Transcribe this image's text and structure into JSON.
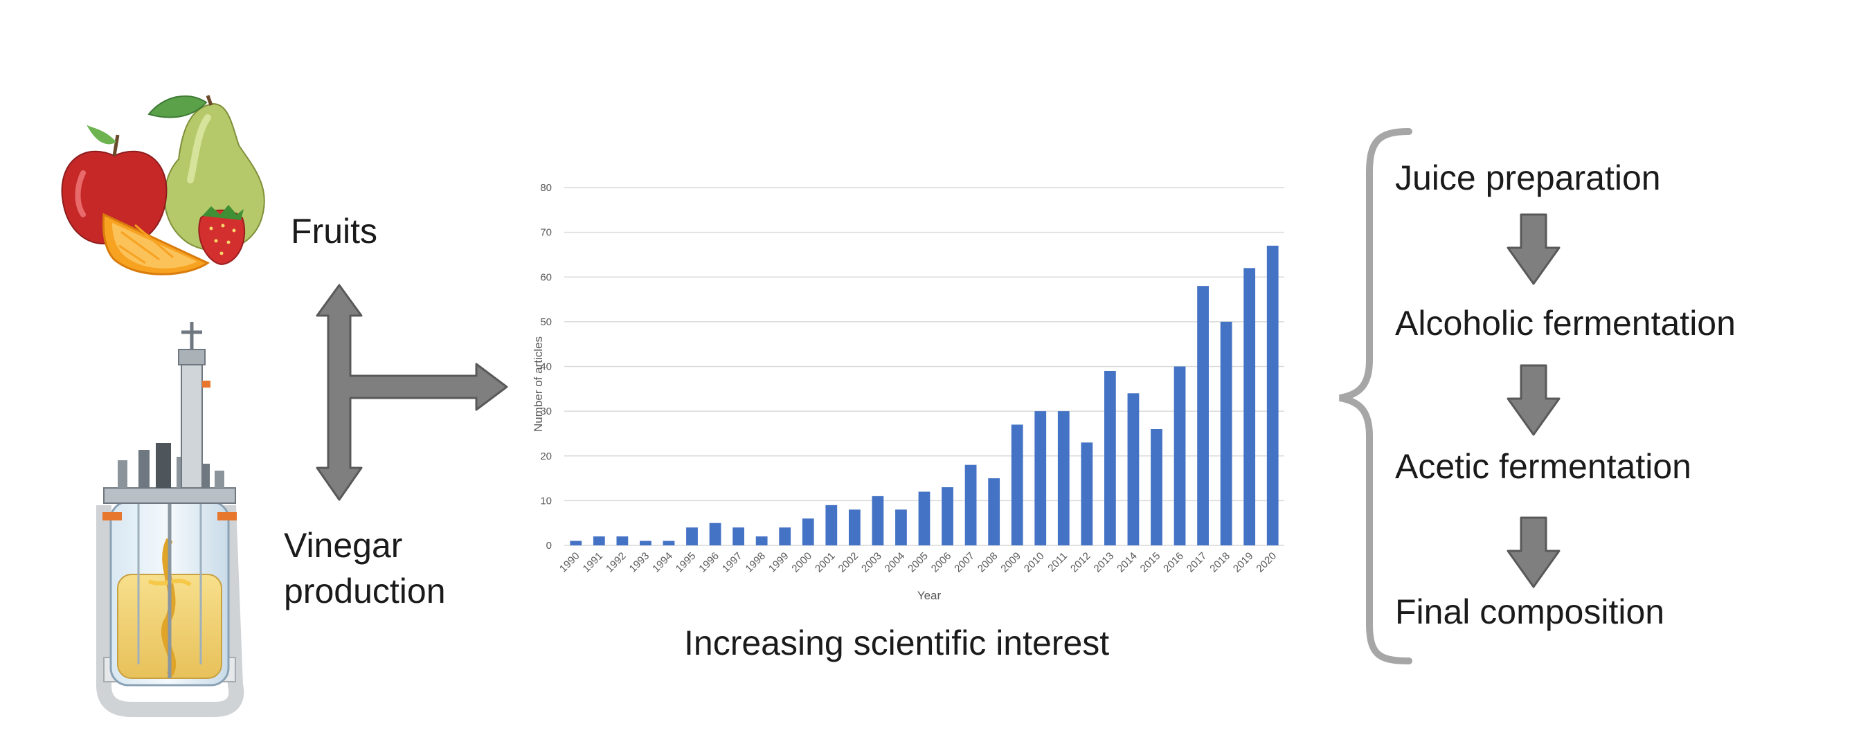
{
  "labels": {
    "fruits": "Fruits",
    "vinegar": "Vinegar production",
    "caption": "Increasing scientific interest"
  },
  "steps": [
    "Juice preparation",
    "Alcoholic fermentation",
    "Acetic fermentation",
    "Final composition"
  ],
  "colors": {
    "bar": "#4472c4",
    "grid": "#d9d9d9",
    "arrow_fill": "#7f7f7f",
    "arrow_stroke": "#595959",
    "brace": "#a6a6a6"
  },
  "icons": [
    "fruit-icon",
    "bioreactor-icon"
  ],
  "chart_data": {
    "type": "bar",
    "categories": [
      "1990",
      "1991",
      "1992",
      "1993",
      "1994",
      "1995",
      "1996",
      "1997",
      "1998",
      "1999",
      "2000",
      "2001",
      "2002",
      "2003",
      "2004",
      "2005",
      "2006",
      "2007",
      "2008",
      "2009",
      "2010",
      "2011",
      "2012",
      "2013",
      "2014",
      "2015",
      "2016",
      "2017",
      "2018",
      "2019",
      "2020"
    ],
    "values": [
      1,
      2,
      2,
      1,
      1,
      4,
      5,
      4,
      2,
      4,
      6,
      9,
      8,
      11,
      8,
      12,
      13,
      18,
      15,
      27,
      30,
      30,
      23,
      39,
      34,
      26,
      40,
      58,
      50,
      62,
      67
    ],
    "xlabel": "Year",
    "ylabel": "Number of articles",
    "ylim": [
      0,
      80
    ],
    "yticks": [
      0,
      10,
      20,
      30,
      40,
      50,
      60,
      70,
      80
    ],
    "grid": true
  }
}
